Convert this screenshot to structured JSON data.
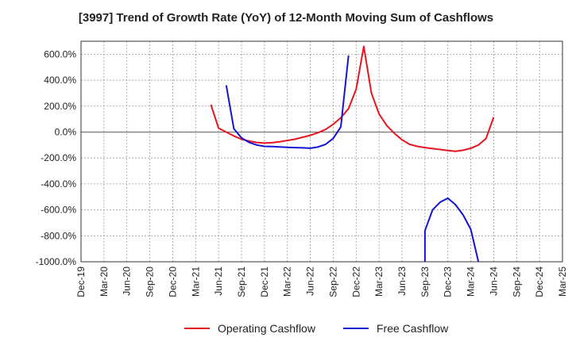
{
  "chart_data": {
    "type": "line",
    "title": "[3997]  Trend of Growth Rate (YoY) of 12-Month Moving Sum of Cashflows",
    "xlabel": "",
    "ylabel": "",
    "ylim": [
      -1000,
      700
    ],
    "y_ticks": [
      600,
      400,
      200,
      0,
      -200,
      -400,
      -600,
      -800,
      -1000
    ],
    "y_tick_labels": [
      "600.0%",
      "400.0%",
      "200.0%",
      "0.0%",
      "-200.0%",
      "-400.0%",
      "-600.0%",
      "-800.0%",
      "-1000.0%"
    ],
    "x_tick_labels": [
      "Dec-19",
      "Mar-20",
      "Jun-20",
      "Sep-20",
      "Dec-20",
      "Mar-21",
      "Jun-21",
      "Sep-21",
      "Dec-21",
      "Mar-22",
      "Jun-22",
      "Sep-22",
      "Dec-22",
      "Mar-23",
      "Jun-23",
      "Sep-23",
      "Dec-23",
      "Mar-24",
      "Jun-24",
      "Sep-24",
      "Dec-24",
      "Mar-25"
    ],
    "x_start": "2019-12",
    "grid": true,
    "legend_position": "bottom",
    "series": [
      {
        "name": "Operating Cashflow",
        "color": "#e8141e",
        "points": [
          [
            "2021-05",
            210
          ],
          [
            "2021-06",
            30
          ],
          [
            "2021-07",
            0
          ],
          [
            "2021-08",
            -30
          ],
          [
            "2021-09",
            -55
          ],
          [
            "2021-10",
            -70
          ],
          [
            "2021-11",
            -80
          ],
          [
            "2021-12",
            -85
          ],
          [
            "2022-01",
            -82
          ],
          [
            "2022-02",
            -75
          ],
          [
            "2022-03",
            -65
          ],
          [
            "2022-04",
            -55
          ],
          [
            "2022-05",
            -40
          ],
          [
            "2022-06",
            -25
          ],
          [
            "2022-07",
            -5
          ],
          [
            "2022-08",
            20
          ],
          [
            "2022-09",
            60
          ],
          [
            "2022-10",
            110
          ],
          [
            "2022-11",
            180
          ],
          [
            "2022-12",
            330
          ],
          [
            "2023-01",
            660
          ],
          [
            "2023-02",
            300
          ],
          [
            "2023-03",
            140
          ],
          [
            "2023-04",
            50
          ],
          [
            "2023-05",
            -10
          ],
          [
            "2023-06",
            -60
          ],
          [
            "2023-07",
            -95
          ],
          [
            "2023-08",
            -110
          ],
          [
            "2023-09",
            -120
          ],
          [
            "2023-10",
            -128
          ],
          [
            "2023-11",
            -135
          ],
          [
            "2023-12",
            -142
          ],
          [
            "2024-01",
            -148
          ],
          [
            "2024-02",
            -140
          ],
          [
            "2024-03",
            -125
          ],
          [
            "2024-04",
            -100
          ],
          [
            "2024-05",
            -50
          ],
          [
            "2024-06",
            115
          ]
        ]
      },
      {
        "name": "Free Cashflow",
        "color": "#1414d2",
        "points": [
          [
            "2021-07",
            360
          ],
          [
            "2021-08",
            25
          ],
          [
            "2021-09",
            -45
          ],
          [
            "2021-10",
            -80
          ],
          [
            "2021-11",
            -100
          ],
          [
            "2021-12",
            -110
          ],
          [
            "2022-01",
            -112
          ],
          [
            "2022-02",
            -115
          ],
          [
            "2022-03",
            -118
          ],
          [
            "2022-04",
            -120
          ],
          [
            "2022-05",
            -122
          ],
          [
            "2022-06",
            -125
          ],
          [
            "2022-07",
            -115
          ],
          [
            "2022-08",
            -95
          ],
          [
            "2022-09",
            -50
          ],
          [
            "2022-10",
            40
          ],
          [
            "2022-11",
            590
          ]
        ],
        "points_b": [
          [
            "2023-09",
            -1000
          ],
          [
            "2023-09",
            -760
          ],
          [
            "2023-10",
            -600
          ],
          [
            "2023-11",
            -540
          ],
          [
            "2023-12",
            -510
          ],
          [
            "2024-01",
            -560
          ],
          [
            "2024-02",
            -640
          ],
          [
            "2024-03",
            -750
          ],
          [
            "2024-04",
            -1000
          ]
        ]
      }
    ]
  }
}
